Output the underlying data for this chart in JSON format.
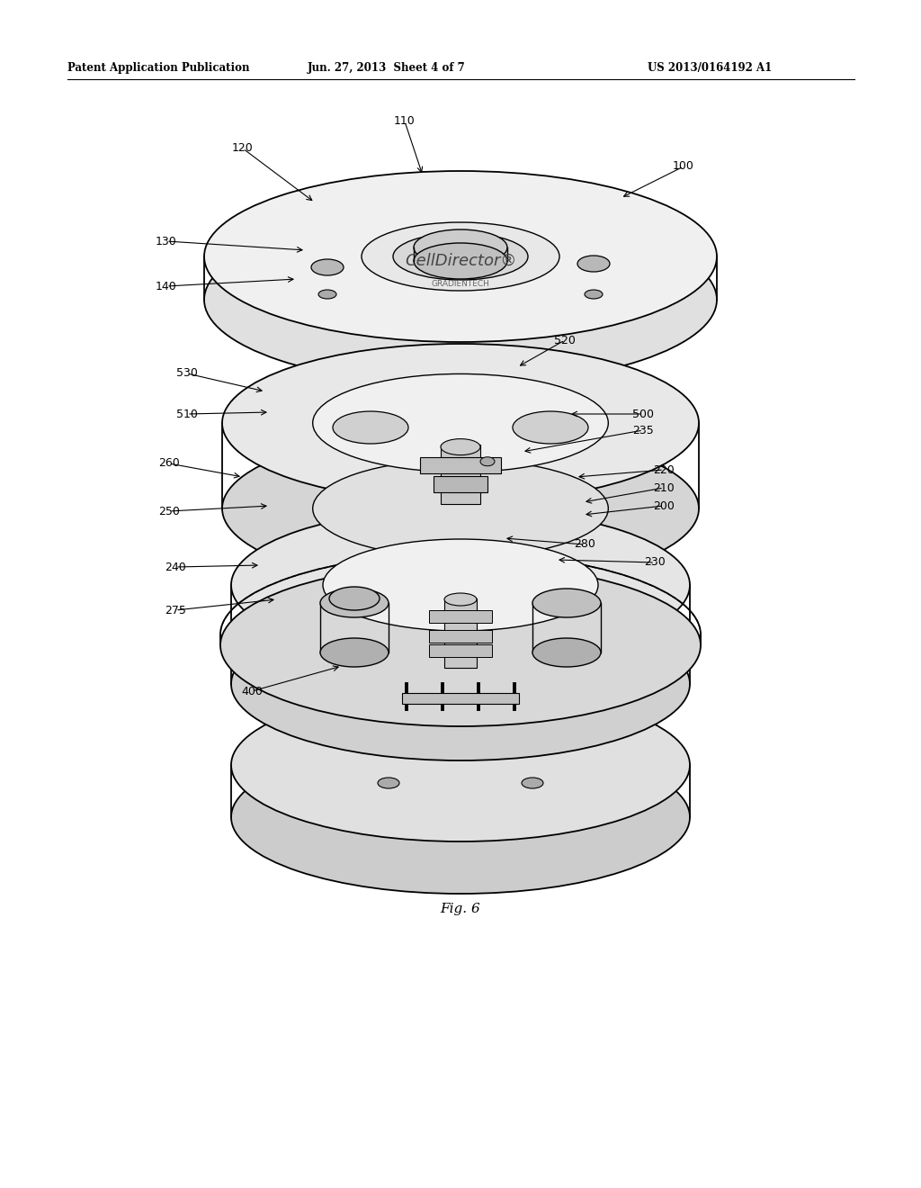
{
  "bg_color": "#ffffff",
  "header_left": "Patent Application Publication",
  "header_mid": "Jun. 27, 2013  Sheet 4 of 7",
  "header_right": "US 2013/0164192 A1",
  "figure_label": "Fig. 6",
  "header_fontsize": 8.5,
  "label_fontsize": 9.0,
  "fig_label_fontsize": 11
}
